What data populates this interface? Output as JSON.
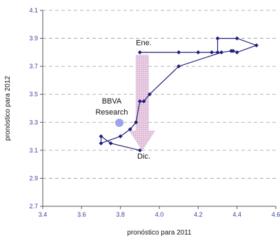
{
  "chart_data": {
    "type": "scatter",
    "xlabel": "pronóstico para 2011",
    "ylabel": "pronóstico para 2012",
    "xlim": [
      3.4,
      4.6
    ],
    "ylim": [
      2.7,
      4.1
    ],
    "xticks": [
      "3.4",
      "3.6",
      "3.8",
      "4.0",
      "4.2",
      "4.4",
      "4.6"
    ],
    "yticks": [
      "2.7",
      "2.9",
      "3.1",
      "3.3",
      "3.5",
      "3.7",
      "3.9",
      "4.1"
    ],
    "grid": "horizontal dashed",
    "series": [
      {
        "color": "#1f1f7a",
        "marker": "diamond",
        "points": [
          [
            3.9,
            3.8
          ],
          [
            4.1,
            3.8
          ],
          [
            4.2,
            3.8
          ],
          [
            4.27,
            3.8
          ],
          [
            4.3,
            3.8
          ],
          [
            4.3,
            3.9
          ],
          [
            4.4,
            3.9
          ],
          [
            4.5,
            3.85
          ],
          [
            4.4,
            3.8
          ],
          [
            4.38,
            3.81
          ],
          [
            4.37,
            3.81
          ],
          [
            4.32,
            3.8
          ],
          [
            4.1,
            3.7
          ],
          [
            3.95,
            3.5
          ],
          [
            3.92,
            3.45
          ],
          [
            3.9,
            3.45
          ],
          [
            3.88,
            3.3
          ],
          [
            3.85,
            3.25
          ],
          [
            3.8,
            3.2
          ],
          [
            3.7,
            3.15
          ],
          [
            3.7,
            3.2
          ],
          [
            3.75,
            3.15
          ],
          [
            3.9,
            3.1
          ]
        ]
      }
    ],
    "annotations": [
      {
        "text": "Ene.",
        "x": 3.92,
        "y": 3.85
      },
      {
        "text": "Dic.",
        "x": 3.92,
        "y": 3.04
      }
    ],
    "arrow": {
      "x": 3.912,
      "y_from": 3.78,
      "y_to": 3.1,
      "color": "#e2c3dc"
    },
    "logo": {
      "line1": "BBVA",
      "line2": "Research",
      "dot_color": "#9aa3ee"
    }
  }
}
